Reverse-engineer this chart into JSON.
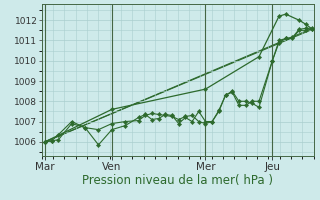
{
  "background_color": "#ceeaea",
  "plot_bg_color": "#ceeaea",
  "grid_color": "#aacece",
  "line_color": "#2d6a2d",
  "title": "Pression niveau de la mer( hPa )",
  "title_color": "#2d6a2d",
  "title_fontsize": 8.5,
  "tick_color": "#333333",
  "ytick_fontsize": 6.5,
  "xtick_fontsize": 7.5,
  "yticks": [
    1006,
    1007,
    1008,
    1009,
    1010,
    1011,
    1012
  ],
  "ylim": [
    1005.3,
    1012.8
  ],
  "xlim": [
    -3,
    241
  ],
  "day_labels": [
    "Mar",
    "Ven",
    "Mer",
    "Jeu"
  ],
  "day_positions": [
    0,
    60,
    144,
    204
  ],
  "series1_x": [
    0,
    6,
    12,
    24,
    36,
    48,
    60,
    72,
    84,
    90,
    96,
    102,
    108,
    114,
    120,
    126,
    132,
    138,
    144,
    150,
    156,
    162,
    168,
    174,
    180,
    186,
    192,
    204,
    210,
    216,
    222,
    228,
    234,
    240
  ],
  "series1_y": [
    1006.0,
    1006.05,
    1006.1,
    1006.9,
    1006.7,
    1005.85,
    1006.6,
    1006.8,
    1007.2,
    1007.35,
    1007.1,
    1007.15,
    1007.35,
    1007.3,
    1006.9,
    1007.2,
    1007.0,
    1007.5,
    1007.0,
    1007.0,
    1007.5,
    1008.3,
    1008.5,
    1008.0,
    1008.0,
    1007.9,
    1007.7,
    1010.0,
    1011.0,
    1011.1,
    1011.1,
    1011.5,
    1011.5,
    1011.55
  ],
  "series2_x": [
    0,
    6,
    12,
    24,
    36,
    48,
    60,
    72,
    84,
    90,
    96,
    102,
    108,
    114,
    120,
    126,
    132,
    138,
    144,
    150,
    156,
    162,
    168,
    174,
    180,
    186,
    192,
    204,
    210,
    216,
    222,
    228,
    234,
    240
  ],
  "series2_y": [
    1006.0,
    1006.05,
    1006.35,
    1007.0,
    1006.7,
    1006.6,
    1006.9,
    1007.0,
    1007.05,
    1007.3,
    1007.4,
    1007.35,
    1007.3,
    1007.25,
    1007.1,
    1007.25,
    1007.3,
    1007.0,
    1006.9,
    1007.0,
    1007.55,
    1008.3,
    1008.45,
    1007.8,
    1007.8,
    1008.0,
    1008.0,
    1010.0,
    1010.9,
    1011.1,
    1011.15,
    1011.55,
    1011.6,
    1011.6
  ],
  "series3_x": [
    0,
    60,
    144,
    192,
    210,
    216,
    228,
    234,
    240
  ],
  "series3_y": [
    1006.0,
    1007.6,
    1008.6,
    1010.2,
    1012.2,
    1012.3,
    1012.0,
    1011.8,
    1011.55
  ],
  "trend1_x": [
    0,
    240
  ],
  "trend1_y": [
    1006.0,
    1011.55
  ],
  "trend2_x": [
    0,
    240
  ],
  "trend2_y": [
    1006.0,
    1011.6
  ]
}
